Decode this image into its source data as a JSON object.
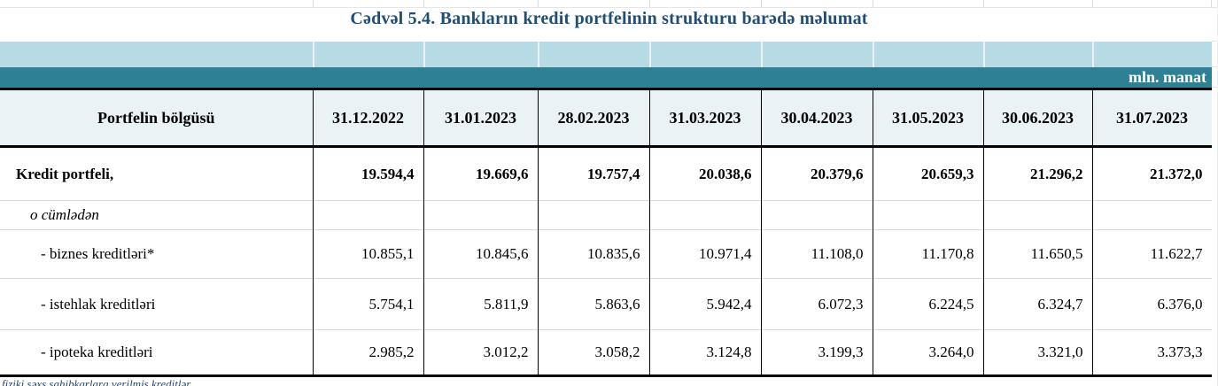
{
  "title": "Cədvəl 5.4. Bankların kredit portfelinin strukturu barədə məlumat",
  "unit_label": "mln. manat",
  "footnote": "fiziki şəxs sahibkarlara verilmiş kreditlər",
  "colors": {
    "title_blue": "#1f4e79",
    "teal_band": "#2e8094",
    "light_band": "#b7dbe4",
    "header_bg": "#e9f3f6",
    "row_separator": "#d4d8d8",
    "footnote_blue": "#27476e"
  },
  "table": {
    "label_header": "Portfelin bölgüsü",
    "date_headers": [
      "31.12.2022",
      "31.01.2023",
      "28.02.2023",
      "31.03.2023",
      "30.04.2023",
      "31.05.2023",
      "30.06.2023",
      "31.07.2023"
    ],
    "rows": [
      {
        "label": "Kredit portfeli,",
        "bold": true,
        "italic": false,
        "indent": 1,
        "values": [
          "19.594,4",
          "19.669,6",
          "19.757,4",
          "20.038,6",
          "20.379,6",
          "20.659,3",
          "21.296,2",
          "21.372,0"
        ]
      },
      {
        "label": "o cümlədən",
        "bold": false,
        "italic": true,
        "indent": 2,
        "values": [
          "",
          "",
          "",
          "",
          "",
          "",
          "",
          ""
        ]
      },
      {
        "label": "- biznes kreditləri*",
        "bold": false,
        "italic": false,
        "indent": 3,
        "values": [
          "10.855,1",
          "10.845,6",
          "10.835,6",
          "10.971,4",
          "11.108,0",
          "11.170,8",
          "11.650,5",
          "11.622,7"
        ]
      },
      {
        "label": "- istehlak kreditləri",
        "bold": false,
        "italic": false,
        "indent": 3,
        "values": [
          "5.754,1",
          "5.811,9",
          "5.863,6",
          "5.942,4",
          "6.072,3",
          "6.224,5",
          "6.324,7",
          "6.376,0"
        ]
      },
      {
        "label": "- ipoteka kreditləri",
        "bold": false,
        "italic": false,
        "indent": 3,
        "values": [
          "2.985,2",
          "3.012,2",
          "3.058,2",
          "3.124,8",
          "3.199,3",
          "3.264,0",
          "3.321,0",
          "3.373,3"
        ]
      }
    ]
  },
  "chart_data": {
    "type": "table",
    "title": "Cədvəl 5.4. Bankların kredit portfelinin strukturu barədə məlumat",
    "unit": "mln. manat",
    "categories": [
      "31.12.2022",
      "31.01.2023",
      "28.02.2023",
      "31.03.2023",
      "30.04.2023",
      "31.05.2023",
      "30.06.2023",
      "31.07.2023"
    ],
    "series": [
      {
        "name": "Kredit portfeli",
        "values": [
          19594.4,
          19669.6,
          19757.4,
          20038.6,
          20379.6,
          20659.3,
          21296.2,
          21372.0
        ]
      },
      {
        "name": "biznes kreditləri",
        "values": [
          10855.1,
          10845.6,
          10835.6,
          10971.4,
          11108.0,
          11170.8,
          11650.5,
          11622.7
        ]
      },
      {
        "name": "istehlak kreditləri",
        "values": [
          5754.1,
          5811.9,
          5863.6,
          5942.4,
          6072.3,
          6224.5,
          6324.7,
          6376.0
        ]
      },
      {
        "name": "ipoteka kreditləri",
        "values": [
          2985.2,
          3012.2,
          3058.2,
          3124.8,
          3199.3,
          3264.0,
          3321.0,
          3373.3
        ]
      }
    ]
  }
}
